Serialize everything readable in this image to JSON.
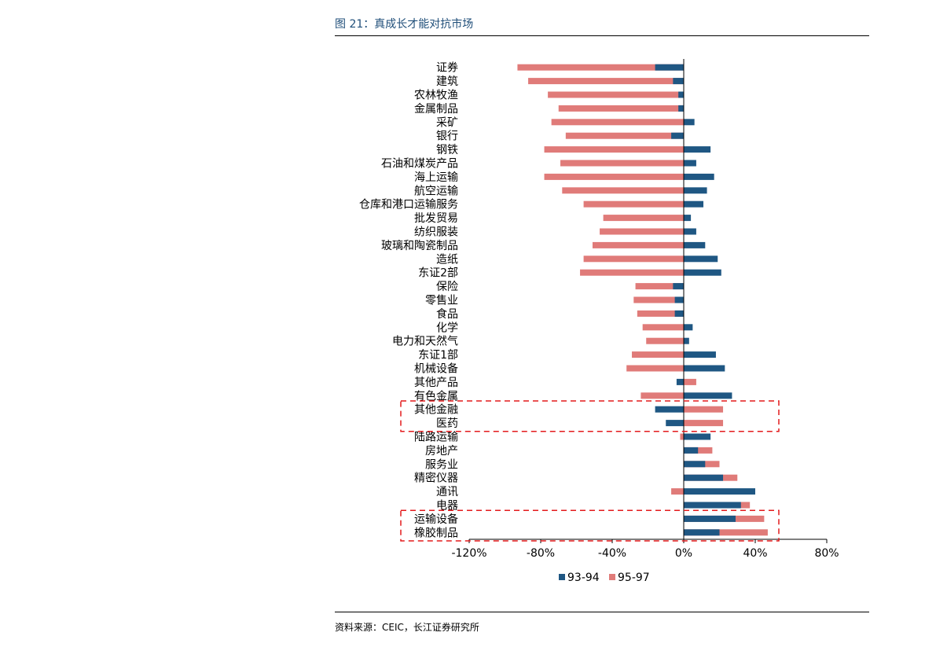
{
  "figure": {
    "title": "图 21：真成长才能对抗市场",
    "source": "资料来源：CEIC，长江证券研究所"
  },
  "chart_data": {
    "type": "bar",
    "orientation": "horizontal",
    "categories": [
      "证券",
      "建筑",
      "农林牧渔",
      "金属制品",
      "采矿",
      "银行",
      "钢铁",
      "石油和煤炭产品",
      "海上运输",
      "航空运输",
      "仓库和港口运输服务",
      "批发贸易",
      "纺织服装",
      "玻璃和陶瓷制品",
      "造纸",
      "东证2部",
      "保险",
      "零售业",
      "食品",
      "化学",
      "电力和天然气",
      "东证1部",
      "机械设备",
      "其他产品",
      "有色金属",
      "其他金融",
      "医药",
      "陆路运输",
      "房地产",
      "服务业",
      "精密仪器",
      "通讯",
      "电器",
      "运输设备",
      "橡胶制品"
    ],
    "series": [
      {
        "name": "95-97",
        "color": "#e07b79",
        "values": [
          -93,
          -87,
          -76,
          -70,
          -74,
          -66,
          -78,
          -69,
          -78,
          -68,
          -56,
          -45,
          -47,
          -51,
          -56,
          -58,
          -27,
          -28,
          -26,
          -23,
          -21,
          -29,
          -32,
          7,
          -24,
          22,
          22,
          -2,
          16,
          20,
          30,
          -7,
          37,
          45,
          47
        ]
      },
      {
        "name": "93-94",
        "color": "#1f5783",
        "values": [
          -16,
          -6,
          -3,
          -3,
          6,
          -7,
          15,
          7,
          17,
          13,
          11,
          4,
          7,
          12,
          19,
          21,
          -6,
          -5,
          -5,
          5,
          3,
          18,
          23,
          -4,
          27,
          -16,
          -10,
          15,
          8,
          12,
          22,
          40,
          32,
          29,
          20
        ]
      }
    ],
    "xlim": [
      -120,
      80
    ],
    "xticks": [
      "-120%",
      "-80%",
      "-40%",
      "0%",
      "40%",
      "80%"
    ],
    "xtick_values": [
      -120,
      -80,
      -40,
      0,
      40,
      80
    ],
    "highlight_boxes": [
      {
        "categories": [
          "其他金融",
          "医药"
        ],
        "color": "#e31a1c"
      },
      {
        "categories": [
          "运输设备",
          "橡胶制品"
        ],
        "color": "#e31a1c"
      }
    ]
  }
}
